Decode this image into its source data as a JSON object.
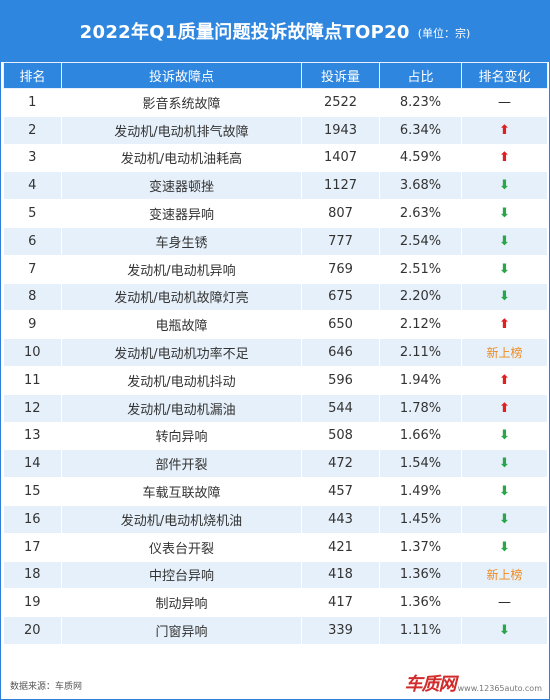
{
  "header": {
    "title": "2022年Q1质量问题投诉故障点TOP20",
    "unit": "(单位：宗)"
  },
  "columns": [
    "排名",
    "投诉故障点",
    "投诉量",
    "占比",
    "排名变化"
  ],
  "rows": [
    {
      "rank": "1",
      "issue": "影音系统故障",
      "count": "2522",
      "ratio": "8.23%",
      "change": "same",
      "change_label": "—"
    },
    {
      "rank": "2",
      "issue": "发动机/电动机排气故障",
      "count": "1943",
      "ratio": "6.34%",
      "change": "up",
      "change_label": "⬆"
    },
    {
      "rank": "3",
      "issue": "发动机/电动机油耗高",
      "count": "1407",
      "ratio": "4.59%",
      "change": "up",
      "change_label": "⬆"
    },
    {
      "rank": "4",
      "issue": "变速器顿挫",
      "count": "1127",
      "ratio": "3.68%",
      "change": "down",
      "change_label": "⬇"
    },
    {
      "rank": "5",
      "issue": "变速器异响",
      "count": "807",
      "ratio": "2.63%",
      "change": "down",
      "change_label": "⬇"
    },
    {
      "rank": "6",
      "issue": "车身生锈",
      "count": "777",
      "ratio": "2.54%",
      "change": "down",
      "change_label": "⬇"
    },
    {
      "rank": "7",
      "issue": "发动机/电动机异响",
      "count": "769",
      "ratio": "2.51%",
      "change": "down",
      "change_label": "⬇"
    },
    {
      "rank": "8",
      "issue": "发动机/电动机故障灯亮",
      "count": "675",
      "ratio": "2.20%",
      "change": "down",
      "change_label": "⬇"
    },
    {
      "rank": "9",
      "issue": "电瓶故障",
      "count": "650",
      "ratio": "2.12%",
      "change": "up",
      "change_label": "⬆"
    },
    {
      "rank": "10",
      "issue": "发动机/电动机功率不足",
      "count": "646",
      "ratio": "2.11%",
      "change": "new",
      "change_label": "新上榜"
    },
    {
      "rank": "11",
      "issue": "发动机/电动机抖动",
      "count": "596",
      "ratio": "1.94%",
      "change": "up",
      "change_label": "⬆"
    },
    {
      "rank": "12",
      "issue": "发动机/电动机漏油",
      "count": "544",
      "ratio": "1.78%",
      "change": "up",
      "change_label": "⬆"
    },
    {
      "rank": "13",
      "issue": "转向异响",
      "count": "508",
      "ratio": "1.66%",
      "change": "down",
      "change_label": "⬇"
    },
    {
      "rank": "14",
      "issue": "部件开裂",
      "count": "472",
      "ratio": "1.54%",
      "change": "down",
      "change_label": "⬇"
    },
    {
      "rank": "15",
      "issue": "车载互联故障",
      "count": "457",
      "ratio": "1.49%",
      "change": "down",
      "change_label": "⬇"
    },
    {
      "rank": "16",
      "issue": "发动机/电动机烧机油",
      "count": "443",
      "ratio": "1.45%",
      "change": "down",
      "change_label": "⬇"
    },
    {
      "rank": "17",
      "issue": "仪表台开裂",
      "count": "421",
      "ratio": "1.37%",
      "change": "down",
      "change_label": "⬇"
    },
    {
      "rank": "18",
      "issue": "中控台异响",
      "count": "418",
      "ratio": "1.36%",
      "change": "new",
      "change_label": "新上榜"
    },
    {
      "rank": "19",
      "issue": "制动异响",
      "count": "417",
      "ratio": "1.36%",
      "change": "same",
      "change_label": "—"
    },
    {
      "rank": "20",
      "issue": "门窗异响",
      "count": "339",
      "ratio": "1.11%",
      "change": "down",
      "change_label": "⬇"
    }
  ],
  "footer": {
    "source": "数据来源：车质网"
  },
  "watermark": {
    "logo_text": "车质网",
    "url": "www.12365auto.com"
  },
  "colors": {
    "header_blue": "#2f86df",
    "row_alt": "#e6f0fa",
    "up_red": "#e02020",
    "down_green": "#2aa64a",
    "new_orange": "#f08a1c"
  }
}
